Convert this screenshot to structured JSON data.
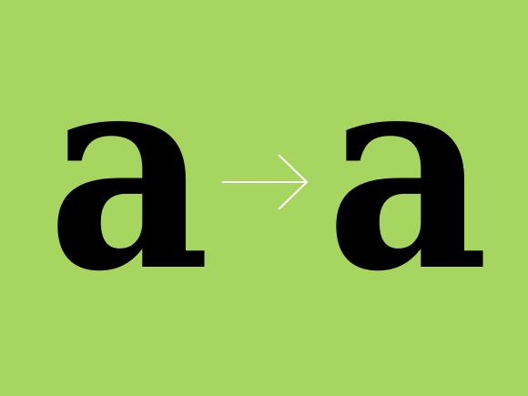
{
  "background_color": "#a6d65f",
  "glyph_color": "#000000",
  "arrow_color": "#ffffff",
  "left_glyph": "a",
  "right_glyph": "a",
  "arrow_icon": "right-arrow-icon"
}
